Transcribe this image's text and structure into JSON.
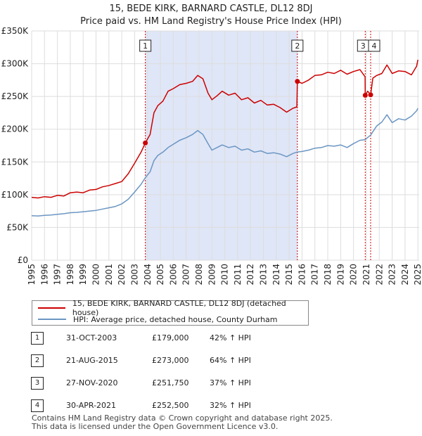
{
  "title": {
    "line1": "15, BEDE KIRK, BARNARD CASTLE, DL12 8DJ",
    "line2": "Price paid vs. HM Land Registry's House Price Index (HPI)"
  },
  "colors": {
    "property": "#cc0000",
    "hpi": "#6b96c3",
    "shade": "#dfe6f7",
    "grid": "#dddddd",
    "marker_line": "#cc0000"
  },
  "chart_data": {
    "type": "line",
    "title": "15, BEDE KIRK, BARNARD CASTLE, DL12 8DJ — Price paid vs. HM Land Registry's House Price Index (HPI)",
    "xlabel": "",
    "ylabel": "",
    "xlim": [
      1995,
      2025.1
    ],
    "ylim": [
      0,
      350000
    ],
    "x_ticks": [
      "1995",
      "1996",
      "1997",
      "1998",
      "1999",
      "2000",
      "2001",
      "2002",
      "2003",
      "2004",
      "2005",
      "2006",
      "2007",
      "2008",
      "2009",
      "2010",
      "2011",
      "2012",
      "2013",
      "2014",
      "2015",
      "2016",
      "2017",
      "2018",
      "2019",
      "2020",
      "2021",
      "2022",
      "2023",
      "2024",
      "2025"
    ],
    "y_ticks": [
      {
        "value": 0,
        "label": "£0"
      },
      {
        "value": 50000,
        "label": "£50K"
      },
      {
        "value": 100000,
        "label": "£100K"
      },
      {
        "value": 150000,
        "label": "£150K"
      },
      {
        "value": 200000,
        "label": "£200K"
      },
      {
        "value": 250000,
        "label": "£250K"
      },
      {
        "value": 300000,
        "label": "£300K"
      },
      {
        "value": 350000,
        "label": "£350K"
      }
    ],
    "grid": true,
    "series": [
      {
        "name": "15, BEDE KIRK, BARNARD CASTLE, DL12 8DJ (detached house)",
        "points": [
          [
            1995.0,
            96000
          ],
          [
            1995.5,
            95000
          ],
          [
            1996.0,
            97000
          ],
          [
            1996.5,
            96000
          ],
          [
            1997.0,
            99000
          ],
          [
            1997.5,
            98000
          ],
          [
            1998.0,
            103000
          ],
          [
            1998.5,
            104000
          ],
          [
            1999.0,
            103000
          ],
          [
            1999.5,
            107000
          ],
          [
            2000.0,
            108000
          ],
          [
            2000.5,
            112000
          ],
          [
            2001.0,
            114000
          ],
          [
            2001.5,
            117000
          ],
          [
            2002.0,
            120000
          ],
          [
            2002.5,
            132000
          ],
          [
            2003.0,
            148000
          ],
          [
            2003.5,
            165000
          ],
          [
            2003.83,
            179000
          ],
          [
            2004.2,
            192000
          ],
          [
            2004.5,
            225000
          ],
          [
            2004.8,
            236000
          ],
          [
            2005.2,
            243000
          ],
          [
            2005.6,
            258000
          ],
          [
            2006.0,
            262000
          ],
          [
            2006.5,
            268000
          ],
          [
            2007.0,
            270000
          ],
          [
            2007.5,
            273000
          ],
          [
            2007.9,
            282000
          ],
          [
            2008.3,
            277000
          ],
          [
            2008.7,
            255000
          ],
          [
            2009.0,
            245000
          ],
          [
            2009.4,
            251000
          ],
          [
            2009.8,
            258000
          ],
          [
            2010.3,
            252000
          ],
          [
            2010.8,
            255000
          ],
          [
            2011.3,
            245000
          ],
          [
            2011.8,
            248000
          ],
          [
            2012.3,
            240000
          ],
          [
            2012.8,
            244000
          ],
          [
            2013.3,
            237000
          ],
          [
            2013.8,
            238000
          ],
          [
            2014.3,
            233000
          ],
          [
            2014.8,
            226000
          ],
          [
            2015.3,
            232000
          ],
          [
            2015.6,
            234000
          ],
          [
            2015.64,
            273000
          ],
          [
            2016.0,
            270000
          ],
          [
            2016.5,
            275000
          ],
          [
            2017.0,
            282000
          ],
          [
            2017.5,
            283000
          ],
          [
            2018.0,
            287000
          ],
          [
            2018.5,
            285000
          ],
          [
            2019.0,
            290000
          ],
          [
            2019.5,
            284000
          ],
          [
            2020.0,
            288000
          ],
          [
            2020.5,
            291000
          ],
          [
            2020.9,
            280000
          ],
          [
            2020.91,
            251750
          ],
          [
            2021.1,
            258000
          ],
          [
            2021.33,
            252500
          ],
          [
            2021.5,
            278000
          ],
          [
            2021.8,
            282000
          ],
          [
            2022.2,
            285000
          ],
          [
            2022.6,
            298000
          ],
          [
            2023.0,
            285000
          ],
          [
            2023.5,
            289000
          ],
          [
            2024.0,
            288000
          ],
          [
            2024.5,
            283000
          ],
          [
            2024.9,
            296000
          ],
          [
            2025.0,
            306000
          ]
        ]
      },
      {
        "name": "HPI: Average price, detached house, County Durham",
        "points": [
          [
            1995.0,
            68000
          ],
          [
            1995.5,
            67500
          ],
          [
            1996.0,
            68500
          ],
          [
            1996.5,
            69000
          ],
          [
            1997.0,
            70000
          ],
          [
            1997.5,
            71000
          ],
          [
            1998.0,
            72500
          ],
          [
            1998.5,
            73000
          ],
          [
            1999.0,
            74000
          ],
          [
            1999.5,
            75000
          ],
          [
            2000.0,
            76000
          ],
          [
            2000.5,
            78000
          ],
          [
            2001.0,
            80000
          ],
          [
            2001.5,
            82000
          ],
          [
            2002.0,
            86000
          ],
          [
            2002.5,
            93000
          ],
          [
            2003.0,
            104000
          ],
          [
            2003.5,
            116000
          ],
          [
            2003.83,
            126000
          ],
          [
            2004.2,
            135000
          ],
          [
            2004.5,
            152000
          ],
          [
            2004.8,
            160000
          ],
          [
            2005.2,
            165000
          ],
          [
            2005.6,
            172000
          ],
          [
            2006.0,
            177000
          ],
          [
            2006.5,
            183000
          ],
          [
            2007.0,
            187000
          ],
          [
            2007.5,
            192000
          ],
          [
            2007.9,
            198000
          ],
          [
            2008.3,
            192000
          ],
          [
            2008.7,
            178000
          ],
          [
            2009.0,
            168000
          ],
          [
            2009.4,
            172000
          ],
          [
            2009.8,
            176000
          ],
          [
            2010.3,
            172000
          ],
          [
            2010.8,
            174000
          ],
          [
            2011.3,
            168000
          ],
          [
            2011.8,
            170000
          ],
          [
            2012.3,
            165000
          ],
          [
            2012.8,
            167000
          ],
          [
            2013.3,
            163000
          ],
          [
            2013.8,
            164000
          ],
          [
            2014.3,
            162000
          ],
          [
            2014.8,
            158000
          ],
          [
            2015.3,
            163000
          ],
          [
            2015.6,
            165000
          ],
          [
            2016.0,
            166000
          ],
          [
            2016.5,
            168000
          ],
          [
            2017.0,
            171000
          ],
          [
            2017.5,
            172000
          ],
          [
            2018.0,
            175000
          ],
          [
            2018.5,
            174000
          ],
          [
            2019.0,
            176000
          ],
          [
            2019.5,
            172000
          ],
          [
            2020.0,
            178000
          ],
          [
            2020.5,
            183000
          ],
          [
            2020.9,
            184000
          ],
          [
            2021.33,
            191000
          ],
          [
            2021.8,
            205000
          ],
          [
            2022.2,
            211000
          ],
          [
            2022.6,
            222000
          ],
          [
            2023.0,
            210000
          ],
          [
            2023.5,
            216000
          ],
          [
            2024.0,
            214000
          ],
          [
            2024.5,
            220000
          ],
          [
            2024.9,
            228000
          ],
          [
            2025.0,
            232000
          ]
        ]
      }
    ],
    "shaded_ranges": [
      [
        2003.83,
        2015.64
      ]
    ],
    "sales": [
      {
        "id": "1",
        "x": 2003.83,
        "value": 179000,
        "show_point": true
      },
      {
        "id": "2",
        "x": 2015.64,
        "value": 273000,
        "show_point": true
      },
      {
        "id": "3",
        "x": 2020.91,
        "value": 251750,
        "show_point": true
      },
      {
        "id": "4",
        "x": 2021.33,
        "value": 252500,
        "show_point": true
      }
    ]
  },
  "legend": {
    "property_label": "15, BEDE KIRK, BARNARD CASTLE, DL12 8DJ (detached house)",
    "hpi_label": "HPI: Average price, detached house, County Durham"
  },
  "sales_table": [
    {
      "num": "1",
      "date": "31-OCT-2003",
      "price": "£179,000",
      "hpi": "42% ↑ HPI"
    },
    {
      "num": "2",
      "date": "21-AUG-2015",
      "price": "£273,000",
      "hpi": "64% ↑ HPI"
    },
    {
      "num": "3",
      "date": "27-NOV-2020",
      "price": "£251,750",
      "hpi": "37% ↑ HPI"
    },
    {
      "num": "4",
      "date": "30-APR-2021",
      "price": "£252,500",
      "hpi": "32% ↑ HPI"
    }
  ],
  "footer": {
    "line1": "Contains HM Land Registry data © Crown copyright and database right 2025.",
    "line2": "This data is licensed under the Open Government Licence v3.0."
  }
}
